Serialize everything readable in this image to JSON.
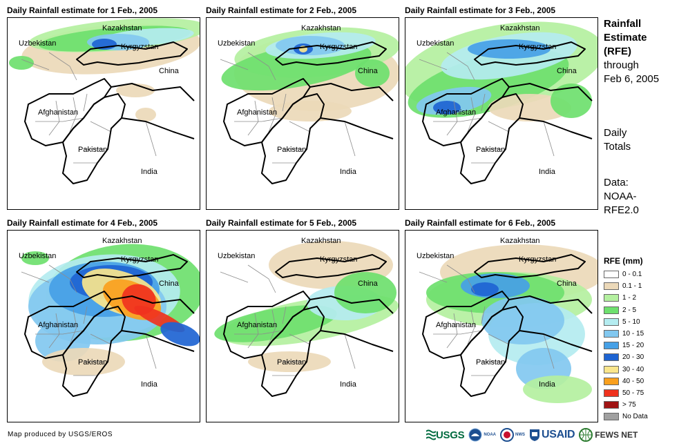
{
  "panels": [
    {
      "title": "Daily Rainfall estimate for 1 Feb., 2005",
      "rain": "day1"
    },
    {
      "title": "Daily Rainfall estimate for 2 Feb., 2005",
      "rain": "day2"
    },
    {
      "title": "Daily Rainfall estimate for 3 Feb., 2005",
      "rain": "day3"
    },
    {
      "title": "Daily Rainfall estimate for 4 Feb., 2005",
      "rain": "day4"
    },
    {
      "title": "Daily Rainfall estimate for 5 Feb., 2005",
      "rain": "day5"
    },
    {
      "title": "Daily Rainfall estimate for 6 Feb., 2005",
      "rain": "day6"
    }
  ],
  "countries": {
    "kazakhstan": "Kazakhstan",
    "uzbekistan": "Uzbekistan",
    "kyrgyzstan": "Kyrgyzstan",
    "china": "China",
    "afghanistan": "Afghanistan",
    "pakistan": "Pakistan",
    "india": "India"
  },
  "side": {
    "title_lines": [
      "Rainfall",
      "Estimate",
      "(RFE)"
    ],
    "through_lines": [
      "through",
      "Feb 6, 2005"
    ],
    "totals_lines": [
      "Daily",
      "Totals"
    ],
    "data_lines": [
      "Data:",
      "NOAA-",
      "RFE2.0"
    ]
  },
  "legend": {
    "title": "RFE (mm)",
    "items": [
      {
        "label": "0 - 0.1",
        "color": "#ffffff"
      },
      {
        "label": "0.1 - 1",
        "color": "#ecd9b9"
      },
      {
        "label": "1 - 2",
        "color": "#b4f0a0"
      },
      {
        "label": "2 - 5",
        "color": "#6ee06e"
      },
      {
        "label": "5 - 10",
        "color": "#b4ecf0"
      },
      {
        "label": "10 - 15",
        "color": "#82c8f0"
      },
      {
        "label": "15 - 20",
        "color": "#46a0e6"
      },
      {
        "label": "20 - 30",
        "color": "#1e64d2"
      },
      {
        "label": "30 - 40",
        "color": "#fae68c"
      },
      {
        "label": "40 - 50",
        "color": "#faa01e"
      },
      {
        "label": "50 - 75",
        "color": "#f0321e"
      },
      {
        "label": "> 75",
        "color": "#a01414"
      },
      {
        "label": "No Data",
        "color": "#a0a0a0"
      }
    ]
  },
  "footer": {
    "credit": "Map produced by USGS/EROS",
    "logos": [
      "USGS",
      "NOAA",
      "NWS",
      "USAID",
      "FEWS NET"
    ]
  }
}
